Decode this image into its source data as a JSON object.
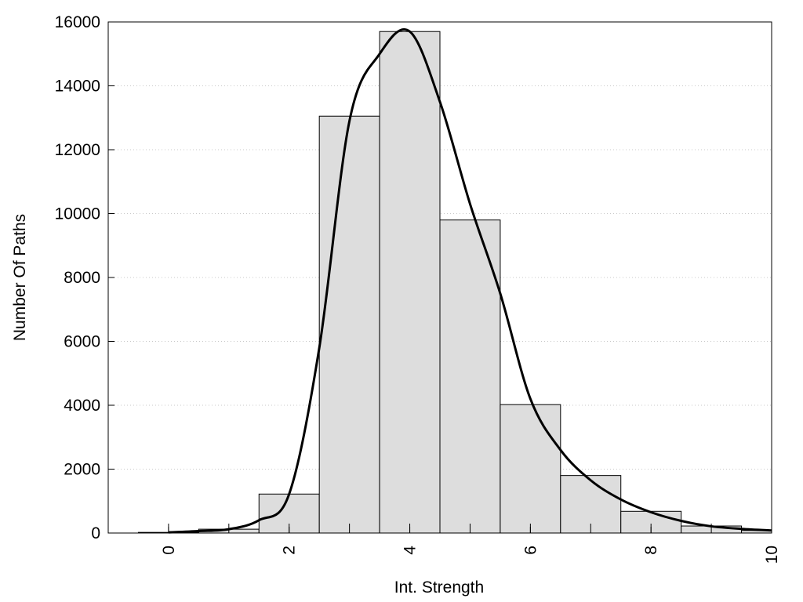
{
  "chart_data": {
    "type": "bar",
    "title": "",
    "xlabel": "Int. Strength",
    "ylabel": "Number Of Paths",
    "xlim": [
      -1,
      10
    ],
    "ylim": [
      0,
      16000
    ],
    "x_ticks": [
      0,
      2,
      4,
      6,
      8,
      10
    ],
    "y_ticks": [
      0,
      2000,
      4000,
      6000,
      8000,
      10000,
      12000,
      14000,
      16000
    ],
    "grid": "horizontal dotted",
    "bin_width": 1,
    "bins": [
      {
        "center": 0,
        "value": 20
      },
      {
        "center": 1,
        "value": 120
      },
      {
        "center": 2,
        "value": 1220
      },
      {
        "center": 3,
        "value": 13050
      },
      {
        "center": 4,
        "value": 15700
      },
      {
        "center": 5,
        "value": 9800
      },
      {
        "center": 6,
        "value": 4020
      },
      {
        "center": 7,
        "value": 1800
      },
      {
        "center": 8,
        "value": 680
      },
      {
        "center": 9,
        "value": 220
      },
      {
        "center": 10,
        "value": 80
      }
    ],
    "curve": {
      "x": [
        0,
        0.5,
        1,
        1.5,
        2,
        2.5,
        3,
        3.5,
        4,
        4.5,
        5,
        5.5,
        6,
        6.5,
        7,
        7.5,
        8,
        8.5,
        9,
        9.5,
        10
      ],
      "y": [
        20,
        60,
        120,
        400,
        1220,
        5800,
        12900,
        15000,
        15700,
        13500,
        10300,
        7500,
        4200,
        2600,
        1650,
        1050,
        650,
        380,
        210,
        130,
        80
      ]
    },
    "colors": {
      "bar_fill": "#dddddd",
      "bar_edge": "#000000",
      "curve": "#000000",
      "grid": "#c8c8c8"
    }
  }
}
